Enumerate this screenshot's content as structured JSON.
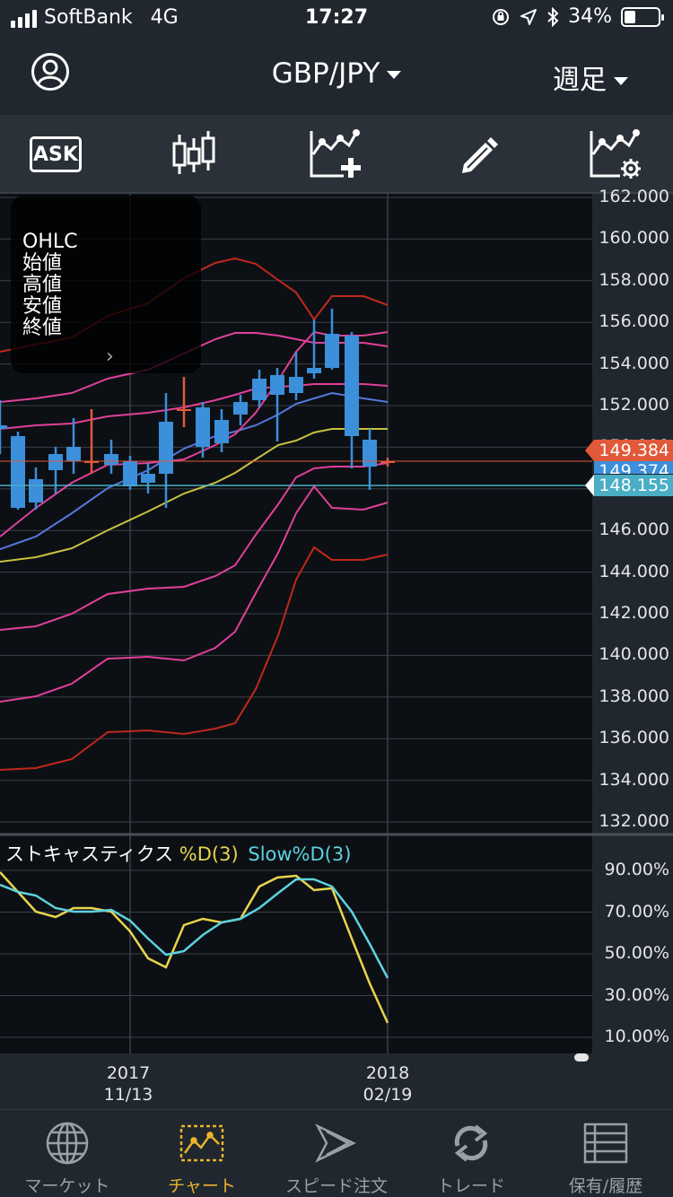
{
  "status_bar": {
    "carrier": "SoftBank",
    "network": "4G",
    "time": "17:27",
    "battery_percent": "34%",
    "battery_level": 0.34
  },
  "nav": {
    "title": "GBP/JPY",
    "period": "週足"
  },
  "toolbar": {
    "ask_label": "ASK"
  },
  "ohlc_panel": {
    "title": "OHLC",
    "rows": [
      "始値",
      "高値",
      "安値",
      "終値"
    ],
    "more": "›"
  },
  "price_axis": {
    "labels": [
      "162.000",
      "160.000",
      "158.000",
      "156.000",
      "154.000",
      "152.000",
      "150.000",
      "148.000",
      "146.000",
      "144.000",
      "142.000",
      "140.000",
      "138.000",
      "136.000",
      "134.000",
      "132.000"
    ],
    "current_ask": "149.384",
    "current_bid": "149.374",
    "reference": "148.155"
  },
  "oscillator": {
    "name": "ストキャスティクス",
    "series1": "%D(3)",
    "series2": "Slow%D(3)",
    "labels": [
      "90.00%",
      "70.00%",
      "50.00%",
      "30.00%",
      "10.00%"
    ]
  },
  "date_axis": [
    {
      "year": "2017",
      "date": "11/13"
    },
    {
      "year": "2018",
      "date": "02/19"
    }
  ],
  "tabs": [
    {
      "label": "マーケット",
      "icon": "globe-icon"
    },
    {
      "label": "チャート",
      "icon": "chart-icon"
    },
    {
      "label": "スピード注文",
      "icon": "speed-order-icon"
    },
    {
      "label": "トレード",
      "icon": "trade-icon"
    },
    {
      "label": "保有/履歴",
      "icon": "history-icon"
    }
  ],
  "colors": {
    "bull": "#e05a3a",
    "bear": "#3b8fdb",
    "accent": "#e9b32b",
    "ask_tag": "#e05a3a",
    "bid_tag": "#3b8fdb",
    "ref_tag": "#4aaec4"
  }
}
